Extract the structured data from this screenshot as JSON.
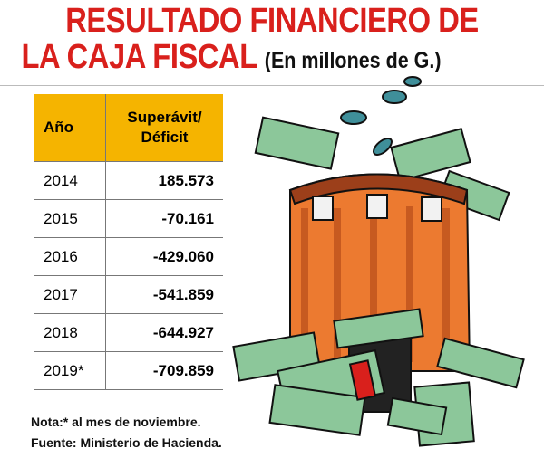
{
  "header": {
    "title_line1": "RESULTADO FINANCIERO DE",
    "title_line2": "LA CAJA FISCAL",
    "subtitle": "(En millones de G.)"
  },
  "table": {
    "columns": [
      "Año",
      "Superávit/ Déficit"
    ],
    "rows": [
      [
        "2014",
        "185.573"
      ],
      [
        "2015",
        "-70.161"
      ],
      [
        "2016",
        "-429.060"
      ],
      [
        "2017",
        "-541.859"
      ],
      [
        "2018",
        "-644.927"
      ],
      [
        "2019*",
        "-709.859"
      ]
    ]
  },
  "notes": [
    "Nota:* al mes de noviembre.",
    "Fuente: Ministerio de Hacienda."
  ]
}
